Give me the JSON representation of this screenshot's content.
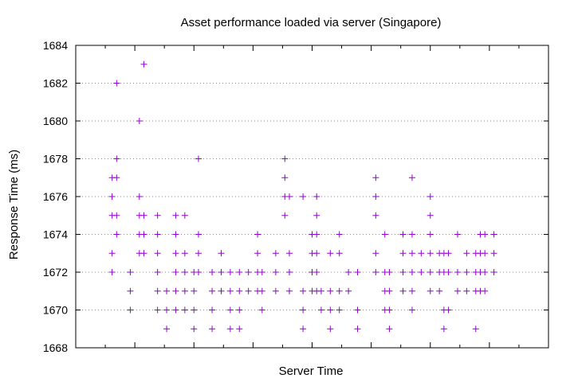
{
  "chart_data": {
    "type": "scatter",
    "title": "Asset performance loaded via server (Singapore)",
    "xlabel": "Server Time",
    "ylabel": "Response Time (ms)",
    "ylim": [
      1668,
      1684
    ],
    "yticks": [
      1668,
      1670,
      1672,
      1674,
      1676,
      1678,
      1680,
      1682,
      1684
    ],
    "xlim": [
      0,
      52
    ],
    "x_tick_labels_shown": false,
    "grid": "horizontal dotted",
    "legend": "none",
    "marker": "plus",
    "series": [
      {
        "color": "#9400d3",
        "points": [
          [
            4,
            1677
          ],
          [
            4,
            1675
          ],
          [
            4,
            1673
          ],
          [
            4,
            1672
          ],
          [
            4,
            1676
          ],
          [
            4.5,
            1682
          ],
          [
            4.5,
            1678
          ],
          [
            4.5,
            1677
          ],
          [
            4.5,
            1675
          ],
          [
            4.5,
            1674
          ],
          [
            6,
            1672
          ],
          [
            6,
            1671
          ],
          [
            6,
            1670
          ],
          [
            7,
            1680
          ],
          [
            7,
            1676
          ],
          [
            7,
            1675
          ],
          [
            7,
            1674
          ],
          [
            7,
            1673
          ],
          [
            7.5,
            1683
          ],
          [
            7.5,
            1675
          ],
          [
            7.5,
            1674
          ],
          [
            7.5,
            1673
          ],
          [
            9,
            1675
          ],
          [
            9,
            1674
          ],
          [
            9,
            1673
          ],
          [
            9,
            1672
          ],
          [
            9,
            1671
          ],
          [
            9,
            1670
          ],
          [
            10,
            1671
          ],
          [
            10,
            1670
          ],
          [
            10,
            1669
          ],
          [
            11,
            1675
          ],
          [
            11,
            1674
          ],
          [
            11,
            1673
          ],
          [
            11,
            1672
          ],
          [
            11,
            1671
          ],
          [
            11,
            1670
          ],
          [
            12,
            1675
          ],
          [
            12,
            1673
          ],
          [
            12,
            1672
          ],
          [
            12,
            1671
          ],
          [
            12,
            1670
          ],
          [
            13,
            1672
          ],
          [
            13,
            1671
          ],
          [
            13,
            1670
          ],
          [
            13,
            1669
          ],
          [
            13.5,
            1678
          ],
          [
            13.5,
            1674
          ],
          [
            13.5,
            1673
          ],
          [
            13.5,
            1672
          ],
          [
            15,
            1672
          ],
          [
            15,
            1671
          ],
          [
            15,
            1670
          ],
          [
            15,
            1669
          ],
          [
            16,
            1673
          ],
          [
            16,
            1672
          ],
          [
            16,
            1671
          ],
          [
            17,
            1672
          ],
          [
            17,
            1671
          ],
          [
            17,
            1670
          ],
          [
            17,
            1669
          ],
          [
            18,
            1672
          ],
          [
            18,
            1671
          ],
          [
            18,
            1670
          ],
          [
            18,
            1669
          ],
          [
            19,
            1672
          ],
          [
            19,
            1671
          ],
          [
            20,
            1674
          ],
          [
            20,
            1673
          ],
          [
            20,
            1672
          ],
          [
            20,
            1671
          ],
          [
            20.5,
            1672
          ],
          [
            20.5,
            1671
          ],
          [
            20.5,
            1670
          ],
          [
            22,
            1673
          ],
          [
            22,
            1672
          ],
          [
            22,
            1671
          ],
          [
            23,
            1678
          ],
          [
            23,
            1677
          ],
          [
            23,
            1676
          ],
          [
            23,
            1675
          ],
          [
            23.5,
            1676
          ],
          [
            23.5,
            1673
          ],
          [
            23.5,
            1672
          ],
          [
            23.5,
            1671
          ],
          [
            25,
            1676
          ],
          [
            25,
            1671
          ],
          [
            25,
            1670
          ],
          [
            25,
            1669
          ],
          [
            26,
            1674
          ],
          [
            26,
            1673
          ],
          [
            26,
            1672
          ],
          [
            26,
            1671
          ],
          [
            26.5,
            1676
          ],
          [
            26.5,
            1675
          ],
          [
            26.5,
            1674
          ],
          [
            26.5,
            1673
          ],
          [
            26.5,
            1672
          ],
          [
            26.5,
            1671
          ],
          [
            27,
            1671
          ],
          [
            27,
            1670
          ],
          [
            28,
            1673
          ],
          [
            28,
            1671
          ],
          [
            28,
            1670
          ],
          [
            28,
            1669
          ],
          [
            29,
            1674
          ],
          [
            29,
            1673
          ],
          [
            29,
            1671
          ],
          [
            29,
            1670
          ],
          [
            30,
            1672
          ],
          [
            30,
            1671
          ],
          [
            31,
            1672
          ],
          [
            31,
            1670
          ],
          [
            31,
            1669
          ],
          [
            33,
            1677
          ],
          [
            33,
            1676
          ],
          [
            33,
            1675
          ],
          [
            33,
            1673
          ],
          [
            33,
            1672
          ],
          [
            34,
            1674
          ],
          [
            34,
            1672
          ],
          [
            34,
            1671
          ],
          [
            34,
            1670
          ],
          [
            34.5,
            1672
          ],
          [
            34.5,
            1671
          ],
          [
            34.5,
            1670
          ],
          [
            34.5,
            1669
          ],
          [
            36,
            1674
          ],
          [
            36,
            1673
          ],
          [
            36,
            1672
          ],
          [
            36,
            1671
          ],
          [
            37,
            1677
          ],
          [
            37,
            1674
          ],
          [
            37,
            1673
          ],
          [
            37,
            1672
          ],
          [
            37,
            1671
          ],
          [
            37,
            1670
          ],
          [
            38,
            1673
          ],
          [
            38,
            1672
          ],
          [
            39,
            1676
          ],
          [
            39,
            1675
          ],
          [
            39,
            1674
          ],
          [
            39,
            1673
          ],
          [
            39,
            1672
          ],
          [
            39,
            1671
          ],
          [
            40,
            1673
          ],
          [
            40,
            1672
          ],
          [
            40,
            1671
          ],
          [
            40.5,
            1673
          ],
          [
            40.5,
            1672
          ],
          [
            40.5,
            1670
          ],
          [
            40.5,
            1669
          ],
          [
            41,
            1673
          ],
          [
            41,
            1672
          ],
          [
            41,
            1670
          ],
          [
            42,
            1674
          ],
          [
            42,
            1672
          ],
          [
            42,
            1671
          ],
          [
            43,
            1673
          ],
          [
            43,
            1672
          ],
          [
            43,
            1671
          ],
          [
            44,
            1673
          ],
          [
            44,
            1672
          ],
          [
            44,
            1671
          ],
          [
            44,
            1669
          ],
          [
            44.5,
            1674
          ],
          [
            44.5,
            1673
          ],
          [
            44.5,
            1672
          ],
          [
            44.5,
            1671
          ],
          [
            45,
            1674
          ],
          [
            45,
            1673
          ],
          [
            45,
            1672
          ],
          [
            45,
            1671
          ],
          [
            46,
            1674
          ],
          [
            46,
            1673
          ],
          [
            46,
            1672
          ]
        ]
      }
    ]
  }
}
